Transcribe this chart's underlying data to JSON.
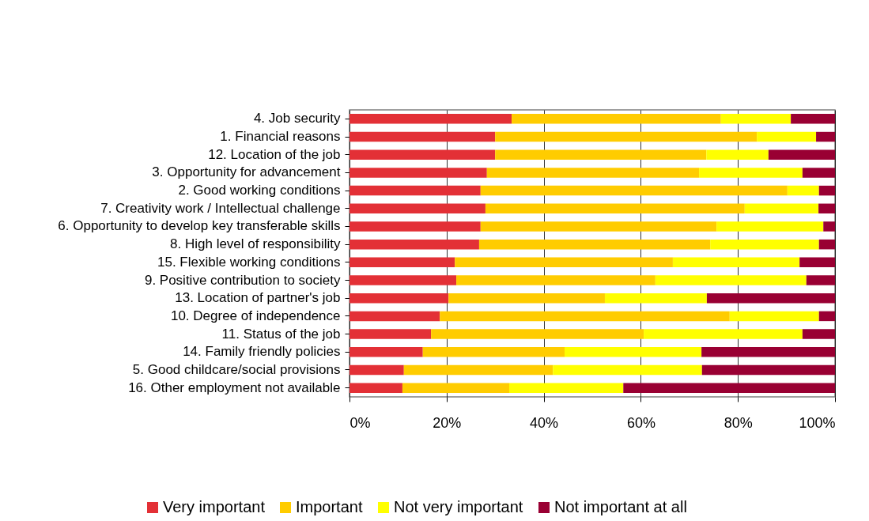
{
  "chart_data": {
    "type": "bar",
    "orientation": "horizontal",
    "stacked": true,
    "categories": [
      "4. Job security",
      "1. Financial reasons",
      "12. Location of the job",
      "3. Opportunity for advancement",
      "2. Good working conditions",
      "7. Creativity work / Intellectual challenge",
      "6. Opportunity to develop key transferable skills",
      "8. High level of responsibility",
      "15. Flexible working conditions",
      "9. Positive contribution to society",
      "13. Location of partner's job",
      "10. Degree of independence",
      "11. Status of the job",
      "14. Family friendly policies",
      "5. Good childcare/social provisions",
      "16. Other employment not available"
    ],
    "series": [
      {
        "name": "Very important",
        "color": "#e33036",
        "values": [
          33.4,
          30.0,
          30.0,
          28.3,
          27.0,
          28.0,
          27.0,
          26.7,
          21.7,
          22.0,
          20.4,
          18.6,
          16.8,
          15.1,
          11.2,
          10.9
        ]
      },
      {
        "name": "Important",
        "color": "#ffcc00",
        "values": [
          43.1,
          53.9,
          43.5,
          43.7,
          63.2,
          53.4,
          48.6,
          47.6,
          44.9,
          41.0,
          32.2,
          59.7,
          43.8,
          29.2,
          30.7,
          22.0
        ]
      },
      {
        "name": "Not very important",
        "color": "#ffff00",
        "values": [
          14.4,
          12.2,
          12.8,
          21.3,
          6.5,
          15.2,
          22.0,
          22.4,
          26.1,
          31.1,
          21.0,
          18.4,
          32.7,
          28.2,
          30.7,
          23.5
        ]
      },
      {
        "name": "Not important at all",
        "color": "#990033",
        "values": [
          9.1,
          3.9,
          13.7,
          6.7,
          3.3,
          3.4,
          2.4,
          3.3,
          7.3,
          5.9,
          26.4,
          3.3,
          6.7,
          27.5,
          27.4,
          43.6
        ]
      }
    ],
    "xlim": [
      0,
      100
    ],
    "xticks": [
      {
        "value": 0,
        "label": "0%"
      },
      {
        "value": 20,
        "label": "20%"
      },
      {
        "value": 40,
        "label": "40%"
      },
      {
        "value": 60,
        "label": "60%"
      },
      {
        "value": 80,
        "label": "80%"
      },
      {
        "value": 100,
        "label": "100%"
      }
    ],
    "grid": "x",
    "legend": "bottom"
  }
}
